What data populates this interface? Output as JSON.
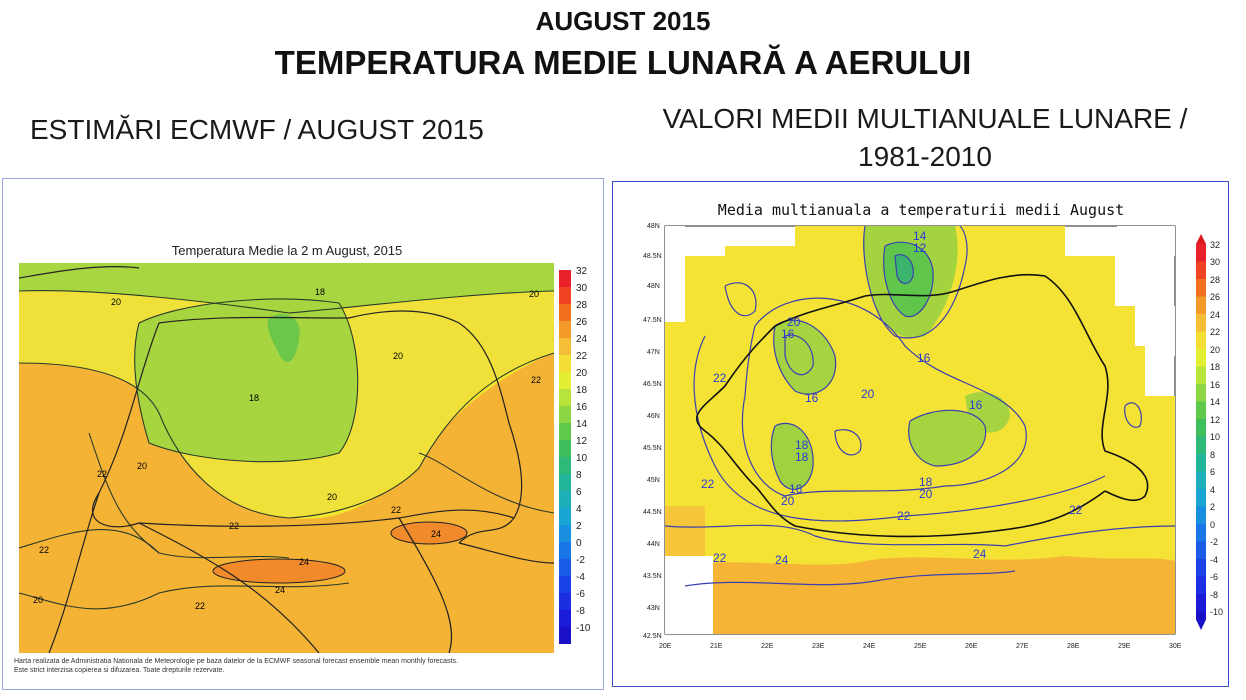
{
  "header": {
    "month_title": "AUGUST 2015",
    "main_title": "TEMPERATURA MEDIE LUNARĂ A AERULUI"
  },
  "left_panel": {
    "heading": "ESTIMĂRI ECMWF / AUGUST 2015",
    "map_title": "Temperatura Medie la 2 m August, 2015",
    "colorbar_labels": [
      "32",
      "30",
      "28",
      "26",
      "24",
      "22",
      "20",
      "18",
      "16",
      "14",
      "12",
      "10",
      "8",
      "6",
      "4",
      "2",
      "0",
      "-2",
      "-4",
      "-6",
      "-8",
      "-10"
    ],
    "contour_labels": [
      "20",
      "18",
      "20",
      "22",
      "18",
      "20",
      "22",
      "20",
      "22",
      "22",
      "24",
      "24",
      "24",
      "22",
      "20",
      "22",
      "20"
    ],
    "credit_line1": "Harta realizata de Administratia Nationala de Meteorologie pe baza datelor de la ECMWF seasonal forecast ensemble mean monthly forecasts.",
    "credit_line2": "Este strict interzisa copierea si difuzarea. Toate drepturile rezervate."
  },
  "right_panel": {
    "heading_line1": "VALORI MEDII MULTIANUALE LUNARE /",
    "heading_line2": "1981-2010",
    "map_title": "Media multianuala a temperaturii medii August",
    "lat_labels": [
      "48N",
      "48.5N",
      "48N",
      "47.5N",
      "47N",
      "46.5N",
      "46N",
      "45.5N",
      "45N",
      "44.5N",
      "44N",
      "43.5N",
      "43N",
      "42.5N"
    ],
    "lon_labels": [
      "20E",
      "21E",
      "22E",
      "23E",
      "24E",
      "25E",
      "26E",
      "27E",
      "28E",
      "29E",
      "30E"
    ],
    "colorbar_labels": [
      "32",
      "30",
      "28",
      "26",
      "24",
      "22",
      "20",
      "18",
      "16",
      "14",
      "12",
      "10",
      "8",
      "6",
      "4",
      "2",
      "0",
      "-2",
      "-4",
      "-6",
      "-8",
      "-10"
    ],
    "contour_labels": [
      "14",
      "12",
      "20",
      "16",
      "16",
      "22",
      "16",
      "20",
      "16",
      "18",
      "18",
      "16",
      "20",
      "18",
      "20",
      "22",
      "22",
      "22",
      "22",
      "24",
      "24"
    ]
  }
}
